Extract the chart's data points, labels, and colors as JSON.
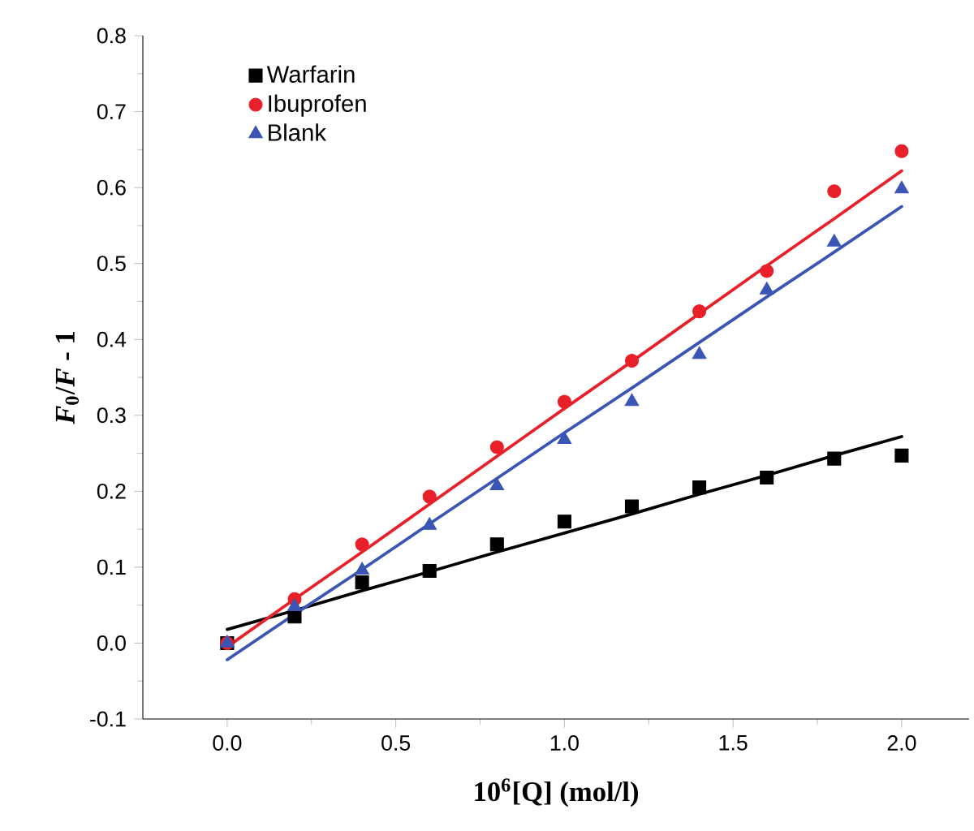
{
  "chart_data": {
    "type": "scatter",
    "xlabel": "10$^{6}$[Q] (mol/l)",
    "ylabel": "*F*$_{0}$/*F* - 1",
    "x": [
      0,
      0.2,
      0.4,
      0.6,
      0.8,
      1.0,
      1.2,
      1.4,
      1.6,
      1.8,
      2.0
    ],
    "series": [
      {
        "name": "Warfarin",
        "color": "#000000",
        "marker": "square",
        "values": [
          0,
          0.035,
          0.08,
          0.095,
          0.13,
          0.16,
          0.18,
          0.205,
          0.218,
          0.243,
          0.247
        ]
      },
      {
        "name": "Ibuprofen",
        "color": "#e8202a",
        "marker": "circle",
        "values": [
          0,
          0.058,
          0.13,
          0.193,
          0.258,
          0.318,
          0.372,
          0.437,
          0.49,
          0.595,
          0.648
        ]
      },
      {
        "name": "Blank",
        "color": "#3a55b4",
        "marker": "triangle",
        "values": [
          0,
          0.048,
          0.096,
          0.155,
          0.207,
          0.268,
          0.318,
          0.38,
          0.465,
          0.528,
          0.598
        ]
      },
      {
        "type": "line",
        "color": "#000000",
        "values": [
          0.018,
          0.043,
          0.069,
          0.094,
          0.12,
          0.145,
          0.17,
          0.196,
          0.221,
          0.247,
          0.272
        ]
      },
      {
        "type": "line",
        "color": "#e8202a",
        "values": [
          -0.005,
          0.058,
          0.12,
          0.183,
          0.246,
          0.309,
          0.371,
          0.434,
          0.497,
          0.559,
          0.622
        ]
      },
      {
        "type": "line",
        "color": "#3a55b4",
        "values": [
          -0.022,
          0.038,
          0.097,
          0.157,
          0.217,
          0.277,
          0.336,
          0.396,
          0.456,
          0.515,
          0.575
        ]
      }
    ],
    "xlim": [
      -0.25,
      2.2
    ],
    "ylim": [
      -0.1,
      0.8
    ],
    "xticks": [
      {
        "value": 0,
        "label": "0.0"
      },
      {
        "value": 0.5,
        "label": "0.5"
      },
      {
        "value": 1.0,
        "label": "1.0"
      },
      {
        "value": 1.5,
        "label": "1.5"
      },
      {
        "value": 2.0,
        "label": "2.0"
      }
    ],
    "yticks": [
      {
        "value": -0.1,
        "label": "-0.1"
      },
      {
        "value": 0,
        "label": "0.0"
      },
      {
        "value": 0.1,
        "label": "0.1"
      },
      {
        "value": 0.2,
        "label": "0.2"
      },
      {
        "value": 0.3,
        "label": "0.3"
      },
      {
        "value": 0.4,
        "label": "0.4"
      },
      {
        "value": 0.5,
        "label": "0.5"
      },
      {
        "value": 0.6,
        "label": "0.6"
      },
      {
        "value": 0.7,
        "label": "0.7"
      },
      {
        "value": 0.8,
        "label": "0.8"
      }
    ],
    "legend": "top left",
    "grid": false
  }
}
